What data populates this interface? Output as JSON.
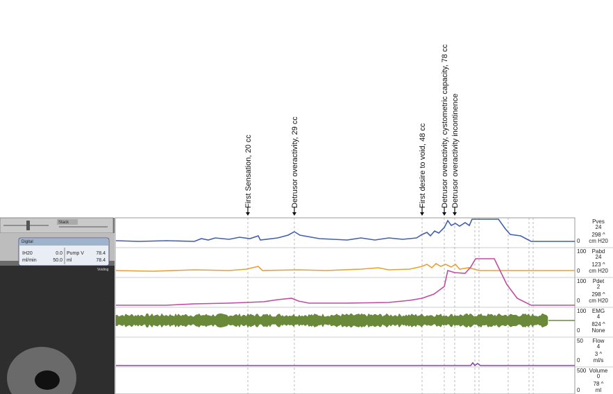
{
  "annotations": [
    {
      "label": "First Sensation, 20 cc"
    },
    {
      "label": "Detrusor overactivity, 29 cc"
    },
    {
      "label": "First desire to void, 48 cc"
    },
    {
      "label": "Detrusor overactivity, cystometric capacity, 78 cc"
    },
    {
      "label": "Detrusor overactivity incontinence"
    }
  ],
  "toolbar": {
    "button": "Stack"
  },
  "digital": {
    "title": "Digital",
    "rows": [
      [
        "IH20",
        "0.0",
        "Pump V",
        "78.4"
      ],
      [
        "ml/min",
        "50.0",
        "ml",
        "78.4"
      ]
    ]
  },
  "video": {
    "status": "Voiding"
  },
  "channels": [
    {
      "max": "",
      "name": "Pves",
      "value": "24",
      "peak": "298 ^",
      "min": "0",
      "unit": "cm H20"
    },
    {
      "max": "100",
      "name": "Pabd",
      "value": "24",
      "peak": "123 ^",
      "min": "0",
      "unit": "cm H20"
    },
    {
      "max": "100",
      "name": "Pdet",
      "value": "2",
      "peak": "298 ^",
      "min": "0",
      "unit": "cm H20"
    },
    {
      "max": "100",
      "name": "EMG",
      "value": "4",
      "peak": "824 ^",
      "min": "0",
      "unit": "None"
    },
    {
      "max": "50",
      "name": "Flow",
      "value": "4",
      "peak": "3 ^",
      "min": "0",
      "unit": "ml/s"
    },
    {
      "max": "500",
      "name": "Volume",
      "value": "0",
      "peak": "78 ^",
      "min": "0",
      "unit": "ml"
    }
  ]
}
